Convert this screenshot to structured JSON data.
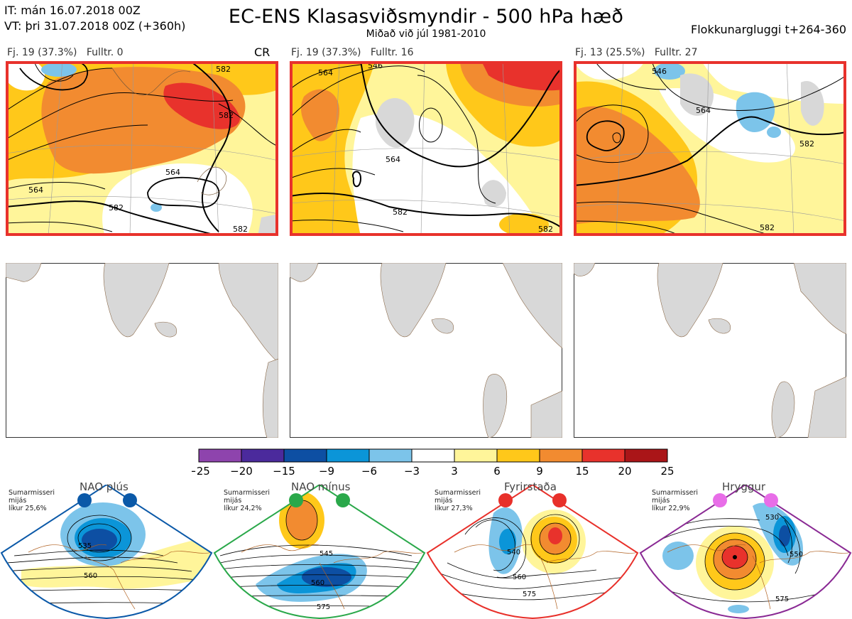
{
  "header": {
    "it_line": "IT: mán 16.07.2018 00Z",
    "vt_line": "VT: þri 31.07.2018 00Z  (+360h)",
    "title": "EC-ENS Klasasviðsmyndir - 500 hPa hæð",
    "subtitle": "Miðað við júl 1981-2010",
    "window": "Flokkunargluggi t+264-360"
  },
  "clusters": [
    {
      "label": "Fj. 19 (37.3%)",
      "member": "Fulltr. 0",
      "tag": "CR",
      "contours": [
        {
          "text": "564"
        },
        {
          "text": "582"
        },
        {
          "text": "582"
        },
        {
          "text": "564"
        },
        {
          "text": "582"
        },
        {
          "text": "582"
        }
      ]
    },
    {
      "label": "Fj. 19 (37.3%)",
      "member": "Fulltr. 16",
      "tag": "",
      "contours": [
        {
          "text": "564"
        },
        {
          "text": "546"
        },
        {
          "text": "564"
        },
        {
          "text": "582"
        },
        {
          "text": "582"
        }
      ]
    },
    {
      "label": "Fj. 13 (25.5%)",
      "member": "Fulltr. 27",
      "tag": "",
      "contours": [
        {
          "text": "546"
        },
        {
          "text": "564"
        },
        {
          "text": "582"
        },
        {
          "text": "582"
        }
      ]
    }
  ],
  "colorbar": {
    "ticks": [
      "−25",
      "−20",
      "−15",
      "−9",
      "−6",
      "−3",
      "3",
      "6",
      "9",
      "15",
      "20",
      "25"
    ],
    "colors": [
      "#8e44ad",
      "#4b2a9c",
      "#0d4fa3",
      "#0b95d8",
      "#7cc4ea",
      "#ffffff",
      "#fff59a",
      "#ffc81a",
      "#f28b30",
      "#e8322c",
      "#aa1518"
    ]
  },
  "regimes": [
    {
      "title": "NAO plús",
      "season": "Sumarmisseri",
      "state": "mijás",
      "prob": "líkur 25,6%",
      "frame_color": "#0b59a8",
      "dot_color": "#0b59a8",
      "labels": [
        "535",
        "560"
      ]
    },
    {
      "title": "NAO mínus",
      "season": "Sumarmisseri",
      "state": "mijás",
      "prob": "líkur 24,2%",
      "frame_color": "#2aa84a",
      "dot_color": "#2aa84a",
      "labels": [
        "545",
        "560",
        "575"
      ]
    },
    {
      "title": "Fyrirstaða",
      "season": "Sumarmisseri",
      "state": "mijás",
      "prob": "líkur 27,3%",
      "frame_color": "#e8302a",
      "dot_color": "#e8302a",
      "labels": [
        "540",
        "560",
        "575"
      ]
    },
    {
      "title": "Hryggur",
      "season": "Sumarmisseri",
      "state": "mijás",
      "prob": "líkur 22,9%",
      "frame_color": "#8a2a94",
      "dot_color": "#e86de8",
      "labels": [
        "530",
        "550",
        "575"
      ]
    }
  ]
}
